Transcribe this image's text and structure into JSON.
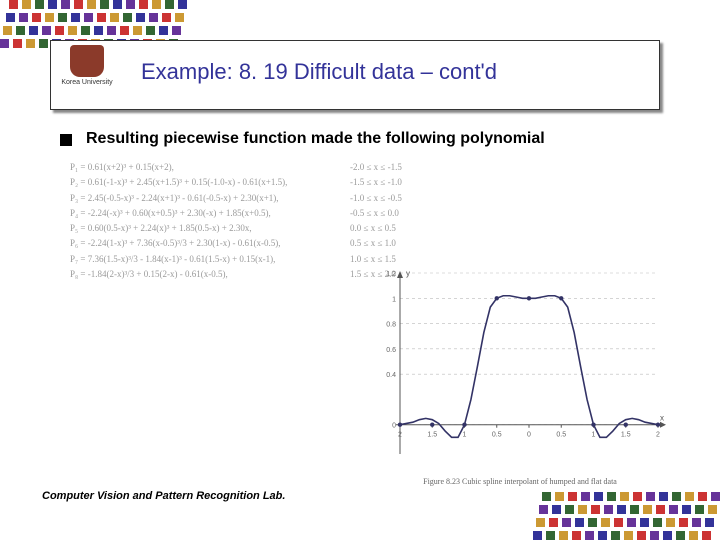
{
  "decor": {
    "colors": [
      "#cc3333",
      "#cc9933",
      "#336633",
      "#333399",
      "#663399"
    ],
    "tl_rows": 4,
    "tl_cols": 14,
    "tl_skew": 3,
    "br_rows": 4,
    "br_cols": 14,
    "br_skew": 3,
    "size": 9,
    "gap": 4
  },
  "logo": {
    "university": "Korea University"
  },
  "title": "Example: 8. 19 Difficult data – cont'd",
  "bullet": "Resulting piecewise function made the following polynomial",
  "equations": [
    {
      "p": "P₁ = 0.61(x+2)³ + 0.15(x+2),",
      "range": "-2.0 ≤ x ≤ -1.5"
    },
    {
      "p": "P₂ = 0.61(-1-x)³ + 2.45(x+1.5)³ + 0.15(-1.0-x) - 0.61(x+1.5),",
      "range": "-1.5 ≤ x ≤ -1.0"
    },
    {
      "p": "P₃ = 2.45(-0.5-x)³ - 2.24(x+1)³ - 0.61(-0.5-x) + 2.30(x+1),",
      "range": "-1.0 ≤ x ≤ -0.5"
    },
    {
      "p": "P₄ = -2.24(-x)³ + 0.60(x+0.5)³ + 2.30(-x) + 1.85(x+0.5),",
      "range": "-0.5 ≤ x ≤ 0.0"
    },
    {
      "p": "P₅ = 0.60(0.5-x)³ + 2.24(x)³ + 1.85(0.5-x) + 2.30x,",
      "range": "0.0 ≤ x ≤ 0.5"
    },
    {
      "p": "P₆ = -2.24(1-x)³ + 7.36(x-0.5)³/3 + 2.30(1-x) - 0.61(x-0.5),",
      "range": "0.5 ≤ x ≤ 1.0"
    },
    {
      "p": "P₇ = 7.36(1.5-x)³/3 - 1.84(x-1)³ - 0.61(1.5-x) + 0.15(x-1),",
      "range": "1.0 ≤ x ≤ 1.5"
    },
    {
      "p": "P₈ = -1.84(2-x)³/3 + 0.15(2-x) - 0.61(x-0.5),",
      "range": "1.5 ≤ x ≤ 2.0"
    }
  ],
  "chart": {
    "type": "line",
    "caption": "Figure 8.23 Cubic spline interpolant of humped and flat data",
    "xlim": [
      -2,
      2
    ],
    "ylim": [
      -0.2,
      1.2
    ],
    "xticks": [
      -2,
      -1.5,
      -1,
      -0.5,
      0,
      0.5,
      1,
      1.5,
      2
    ],
    "xtick_labels": [
      "2",
      "1.5",
      "1",
      "0.5",
      "0",
      "0.5",
      "1",
      "1.5",
      "2"
    ],
    "yticks": [
      0,
      0.4,
      0.6,
      0.8,
      1,
      1.2
    ],
    "ytick_labels": [
      "0",
      "0.4",
      "0.6",
      "0.8",
      "1",
      "1.2"
    ],
    "ylabel": "y",
    "xlabel": "x",
    "grid_color": "#bbbbbb",
    "grid_dash": "3,3",
    "line_color": "#333366",
    "line_width": 1.6,
    "marker_color": "#333366",
    "marker_size": 2.2,
    "background": "#ffffff",
    "axis_color": "#555555",
    "tick_fontsize": 7,
    "points": [
      {
        "x": -2.0,
        "y": 0.0
      },
      {
        "x": -1.9,
        "y": 0.01
      },
      {
        "x": -1.8,
        "y": 0.02
      },
      {
        "x": -1.7,
        "y": 0.04
      },
      {
        "x": -1.6,
        "y": 0.05
      },
      {
        "x": -1.5,
        "y": 0.04
      },
      {
        "x": -1.4,
        "y": 0.01
      },
      {
        "x": -1.3,
        "y": -0.05
      },
      {
        "x": -1.2,
        "y": -0.1
      },
      {
        "x": -1.1,
        "y": -0.1
      },
      {
        "x": -1.0,
        "y": 0.0
      },
      {
        "x": -0.9,
        "y": 0.2
      },
      {
        "x": -0.8,
        "y": 0.46
      },
      {
        "x": -0.7,
        "y": 0.73
      },
      {
        "x": -0.6,
        "y": 0.93
      },
      {
        "x": -0.5,
        "y": 1.0
      },
      {
        "x": -0.4,
        "y": 1.02
      },
      {
        "x": -0.3,
        "y": 1.02
      },
      {
        "x": -0.2,
        "y": 1.01
      },
      {
        "x": -0.1,
        "y": 1.0
      },
      {
        "x": 0.0,
        "y": 1.0
      },
      {
        "x": 0.1,
        "y": 1.0
      },
      {
        "x": 0.2,
        "y": 1.01
      },
      {
        "x": 0.3,
        "y": 1.02
      },
      {
        "x": 0.4,
        "y": 1.02
      },
      {
        "x": 0.5,
        "y": 1.0
      },
      {
        "x": 0.6,
        "y": 0.93
      },
      {
        "x": 0.7,
        "y": 0.73
      },
      {
        "x": 0.8,
        "y": 0.46
      },
      {
        "x": 0.9,
        "y": 0.2
      },
      {
        "x": 1.0,
        "y": 0.0
      },
      {
        "x": 1.1,
        "y": -0.1
      },
      {
        "x": 1.2,
        "y": -0.1
      },
      {
        "x": 1.3,
        "y": -0.05
      },
      {
        "x": 1.4,
        "y": 0.01
      },
      {
        "x": 1.5,
        "y": 0.04
      },
      {
        "x": 1.6,
        "y": 0.05
      },
      {
        "x": 1.7,
        "y": 0.04
      },
      {
        "x": 1.8,
        "y": 0.02
      },
      {
        "x": 1.9,
        "y": 0.01
      },
      {
        "x": 2.0,
        "y": 0.0
      }
    ],
    "markers": [
      {
        "x": -2,
        "y": 0
      },
      {
        "x": -1.5,
        "y": 0
      },
      {
        "x": -1,
        "y": 0
      },
      {
        "x": -0.5,
        "y": 1
      },
      {
        "x": 0,
        "y": 1
      },
      {
        "x": 0.5,
        "y": 1
      },
      {
        "x": 1,
        "y": 0
      },
      {
        "x": 1.5,
        "y": 0
      },
      {
        "x": 2,
        "y": 0
      }
    ]
  },
  "footer": "Computer Vision and Pattern Recognition Lab."
}
